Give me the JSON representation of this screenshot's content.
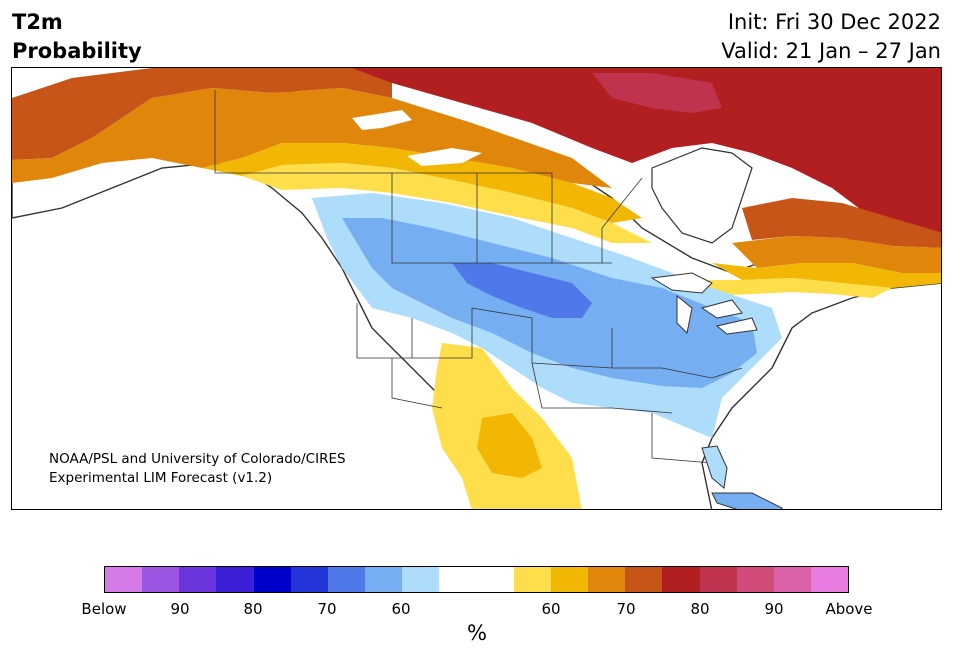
{
  "header": {
    "title_line1": "T2m",
    "title_line2": "Probability",
    "init": "Init: Fri 30 Dec 2022",
    "valid": "Valid: 21 Jan – 27 Jan"
  },
  "credit": {
    "line1": "NOAA/PSL and University of Colorado/CIRES",
    "line2": "Experimental LIM Forecast (v1.2)"
  },
  "colorbar": {
    "unit": "%",
    "colors": [
      "#d67ae8",
      "#9c56e3",
      "#6a35dc",
      "#3a1fd6",
      "#0000cd",
      "#2535d9",
      "#4f78e8",
      "#76aef2",
      "#aedcfb",
      "#ffffff",
      "#ffffff",
      "#fedf4b",
      "#f2b705",
      "#df860b",
      "#c85518",
      "#b11f21",
      "#c0334e",
      "#d14c7b",
      "#db62a8",
      "#e77bdf"
    ],
    "labels": [
      "Below",
      "90",
      "80",
      "70",
      "60",
      "60",
      "70",
      "80",
      "90",
      "Above"
    ]
  },
  "map": {
    "region": "North America",
    "ocean_color": "#ffffff",
    "outline_color": "#333333"
  }
}
